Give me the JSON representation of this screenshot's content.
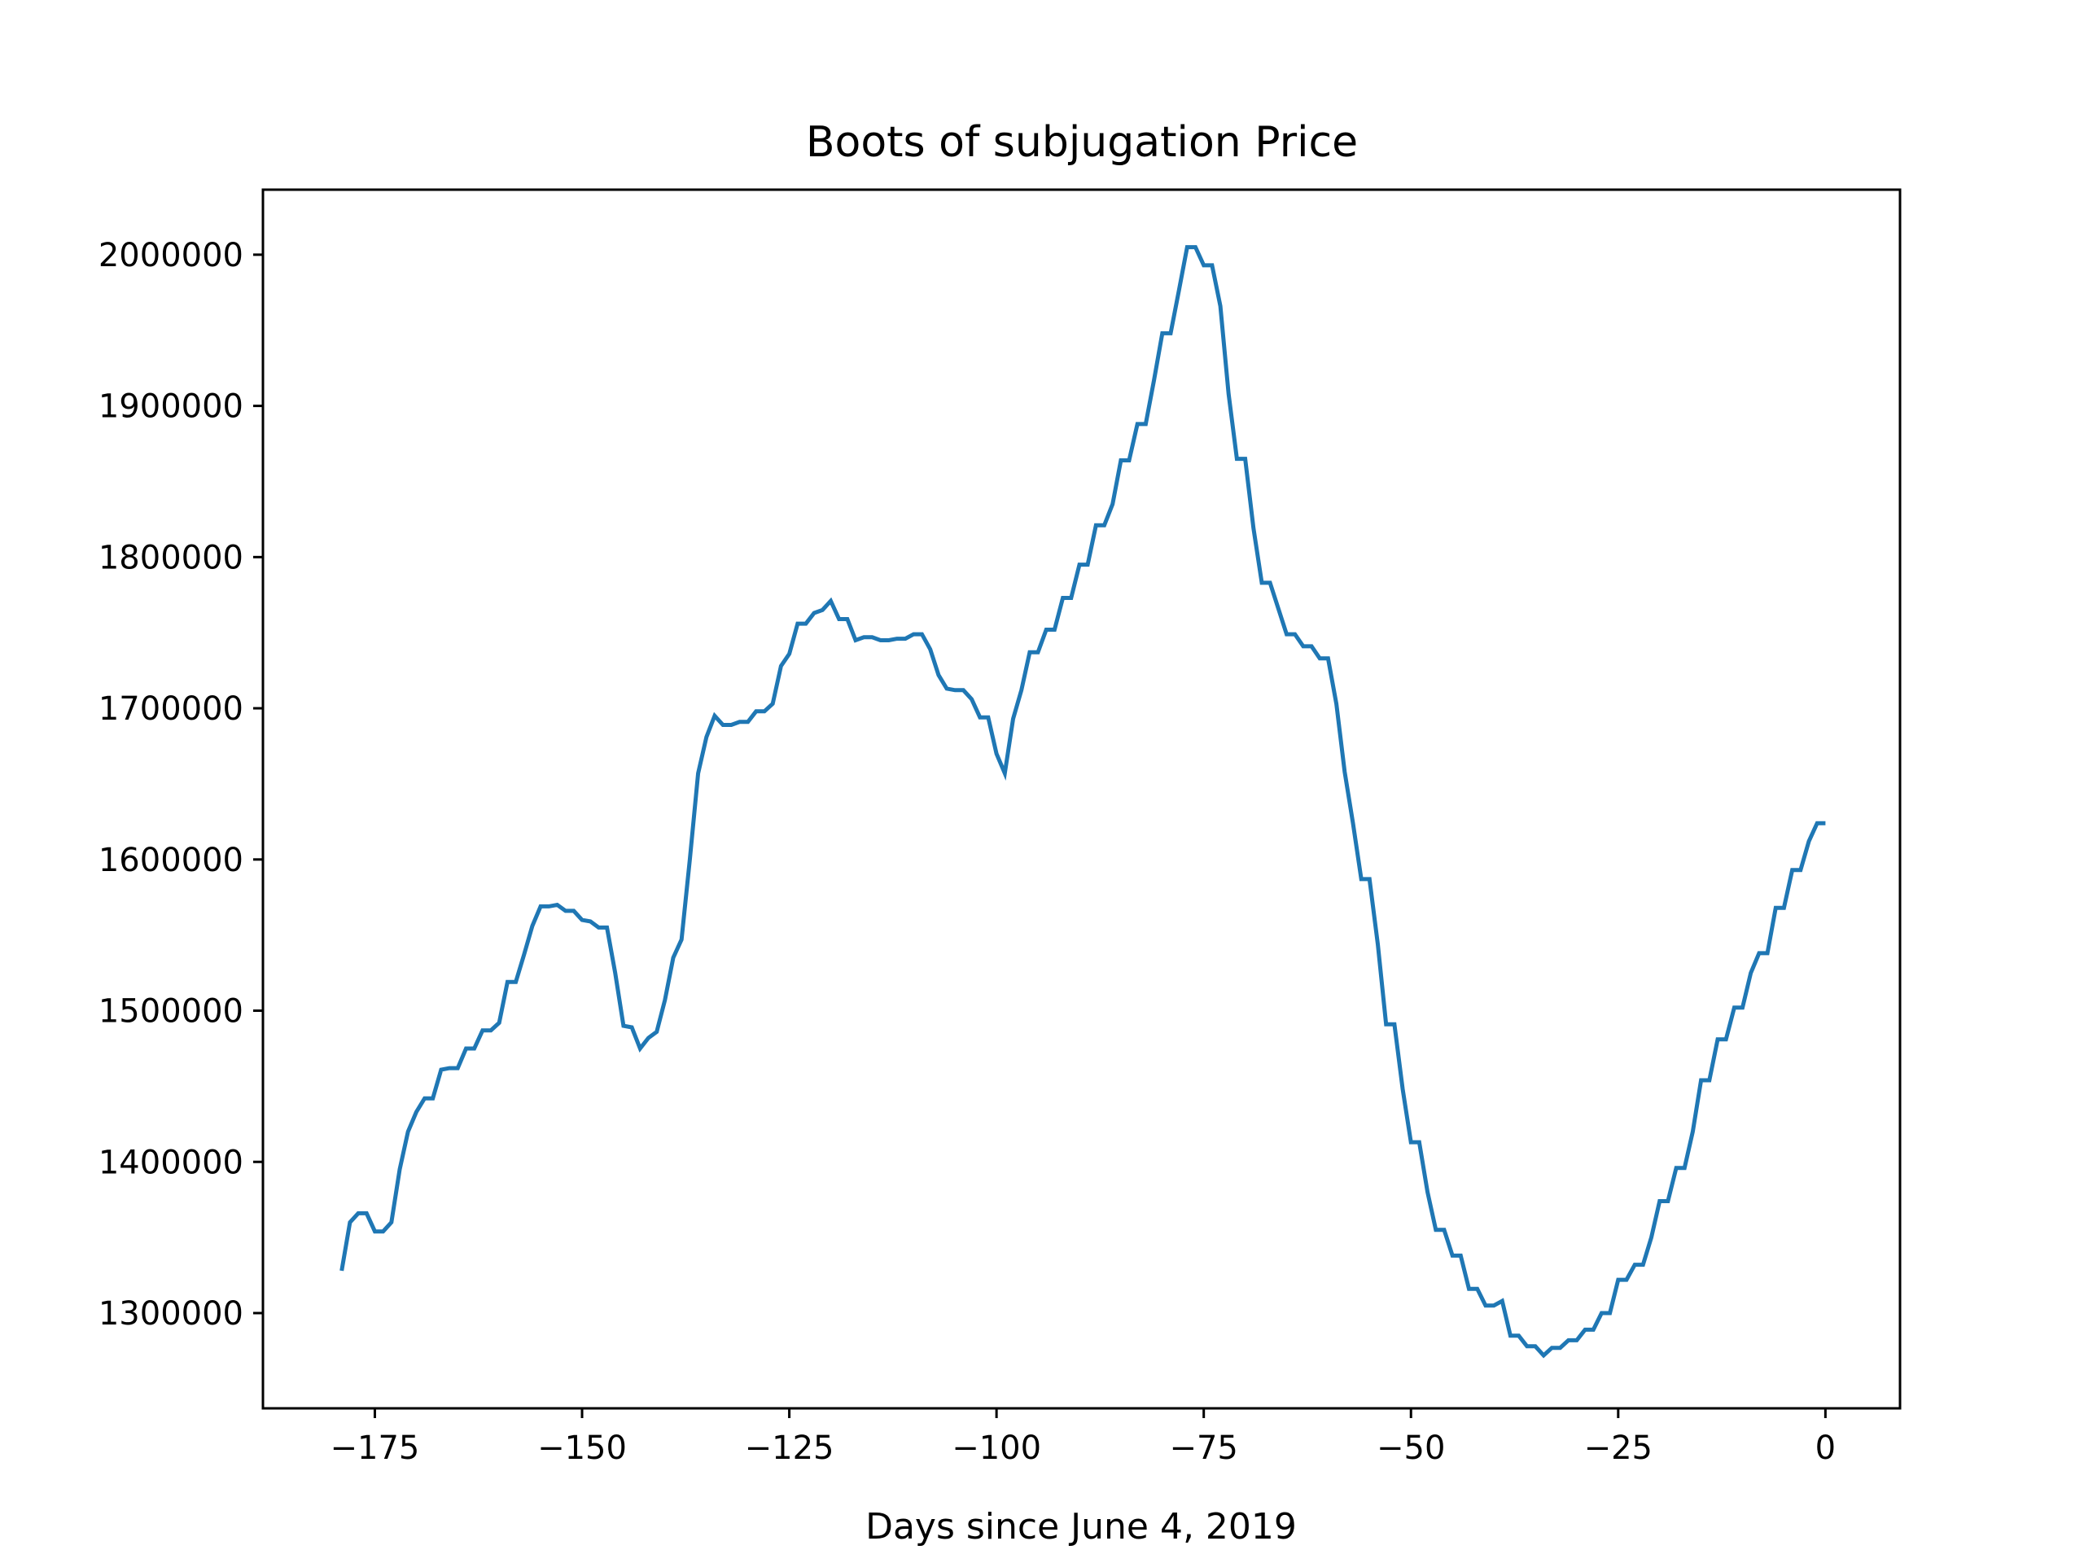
{
  "chart_data": {
    "type": "line",
    "title": "Boots of subjugation Price",
    "xlabel": "Days since June 4, 2019",
    "ylabel": "",
    "xlim": [
      -188.5,
      9
    ],
    "ylim": [
      1237000,
      2043000
    ],
    "x_ticks": [
      -175,
      -150,
      -125,
      -100,
      -75,
      -50,
      -25,
      0
    ],
    "x_tick_labels": [
      "−175",
      "−150",
      "−125",
      "−100",
      "−75",
      "−50",
      "−25",
      "0"
    ],
    "y_ticks": [
      1300000,
      1400000,
      1500000,
      1600000,
      1700000,
      1800000,
      1900000,
      2000000
    ],
    "y_tick_labels": [
      "1300000",
      "1400000",
      "1500000",
      "1600000",
      "1700000",
      "1800000",
      "1900000",
      "2000000"
    ],
    "grid": false,
    "legend": "none",
    "series": [
      {
        "color": "#1f77b4",
        "points": [
          [
            -179,
            1328000
          ],
          [
            -178,
            1360000
          ],
          [
            -177,
            1366000
          ],
          [
            -176,
            1366000
          ],
          [
            -175,
            1354000
          ],
          [
            -174,
            1354000
          ],
          [
            -173,
            1360000
          ],
          [
            -172,
            1395000
          ],
          [
            -171,
            1420000
          ],
          [
            -170,
            1433000
          ],
          [
            -169,
            1442000
          ],
          [
            -168,
            1442000
          ],
          [
            -167,
            1461000
          ],
          [
            -166,
            1462000
          ],
          [
            -165,
            1462000
          ],
          [
            -164,
            1475000
          ],
          [
            -163,
            1475000
          ],
          [
            -162,
            1487000
          ],
          [
            -161,
            1487000
          ],
          [
            -160,
            1492000
          ],
          [
            -159,
            1519000
          ],
          [
            -158,
            1519000
          ],
          [
            -157,
            1537000
          ],
          [
            -156,
            1556000
          ],
          [
            -155,
            1569000
          ],
          [
            -154,
            1569000
          ],
          [
            -153,
            1570000
          ],
          [
            -152,
            1566000
          ],
          [
            -151,
            1566000
          ],
          [
            -150,
            1560000
          ],
          [
            -149,
            1559000
          ],
          [
            -148,
            1555000
          ],
          [
            -147,
            1555000
          ],
          [
            -146,
            1525000
          ],
          [
            -145,
            1490000
          ],
          [
            -144,
            1489000
          ],
          [
            -143,
            1475000
          ],
          [
            -142,
            1482000
          ],
          [
            -141,
            1486000
          ],
          [
            -140,
            1507000
          ],
          [
            -139,
            1535000
          ],
          [
            -138,
            1547000
          ],
          [
            -137,
            1600000
          ],
          [
            -136,
            1657000
          ],
          [
            -135,
            1681000
          ],
          [
            -134,
            1695000
          ],
          [
            -133,
            1689000
          ],
          [
            -132,
            1689000
          ],
          [
            -131,
            1691000
          ],
          [
            -130,
            1691000
          ],
          [
            -129,
            1698000
          ],
          [
            -128,
            1698000
          ],
          [
            -127,
            1703000
          ],
          [
            -126,
            1728000
          ],
          [
            -125,
            1736000
          ],
          [
            -124,
            1756000
          ],
          [
            -123,
            1756000
          ],
          [
            -122,
            1763000
          ],
          [
            -121,
            1765000
          ],
          [
            -120,
            1771000
          ],
          [
            -119,
            1759000
          ],
          [
            -118,
            1759000
          ],
          [
            -117,
            1745000
          ],
          [
            -116,
            1747000
          ],
          [
            -115,
            1747000
          ],
          [
            -114,
            1745000
          ],
          [
            -113,
            1745000
          ],
          [
            -112,
            1746000
          ],
          [
            -111,
            1746000
          ],
          [
            -110,
            1749000
          ],
          [
            -109,
            1749000
          ],
          [
            -108,
            1739000
          ],
          [
            -107,
            1722000
          ],
          [
            -106,
            1713000
          ],
          [
            -105,
            1712000
          ],
          [
            -104,
            1712000
          ],
          [
            -103,
            1706000
          ],
          [
            -102,
            1694000
          ],
          [
            -101,
            1694000
          ],
          [
            -100,
            1670000
          ],
          [
            -99,
            1657000
          ],
          [
            -98,
            1693000
          ],
          [
            -97,
            1712000
          ],
          [
            -96,
            1737000
          ],
          [
            -95,
            1737000
          ],
          [
            -94,
            1752000
          ],
          [
            -93,
            1752000
          ],
          [
            -92,
            1773000
          ],
          [
            -91,
            1773000
          ],
          [
            -90,
            1795000
          ],
          [
            -89,
            1795000
          ],
          [
            -88,
            1821000
          ],
          [
            -87,
            1821000
          ],
          [
            -86,
            1835000
          ],
          [
            -85,
            1864000
          ],
          [
            -84,
            1864000
          ],
          [
            -83,
            1888000
          ],
          [
            -82,
            1888000
          ],
          [
            -81,
            1917000
          ],
          [
            -80,
            1948000
          ],
          [
            -79,
            1948000
          ],
          [
            -78,
            1976000
          ],
          [
            -77,
            2005000
          ],
          [
            -76,
            2005000
          ],
          [
            -75,
            1993000
          ],
          [
            -74,
            1993000
          ],
          [
            -73,
            1966000
          ],
          [
            -72,
            1908000
          ],
          [
            -71,
            1865000
          ],
          [
            -70,
            1865000
          ],
          [
            -69,
            1819000
          ],
          [
            -68,
            1783000
          ],
          [
            -67,
            1783000
          ],
          [
            -66,
            1766000
          ],
          [
            -65,
            1749000
          ],
          [
            -64,
            1749000
          ],
          [
            -63,
            1741000
          ],
          [
            -62,
            1741000
          ],
          [
            -61,
            1733000
          ],
          [
            -60,
            1733000
          ],
          [
            -59,
            1703000
          ],
          [
            -58,
            1658000
          ],
          [
            -57,
            1624000
          ],
          [
            -56,
            1587000
          ],
          [
            -55,
            1587000
          ],
          [
            -54,
            1544000
          ],
          [
            -53,
            1491000
          ],
          [
            -52,
            1491000
          ],
          [
            -51,
            1448000
          ],
          [
            -50,
            1413000
          ],
          [
            -49,
            1413000
          ],
          [
            -48,
            1380000
          ],
          [
            -47,
            1355000
          ],
          [
            -46,
            1355000
          ],
          [
            -45,
            1338000
          ],
          [
            -44,
            1338000
          ],
          [
            -43,
            1316000
          ],
          [
            -42,
            1316000
          ],
          [
            -41,
            1305000
          ],
          [
            -40,
            1305000
          ],
          [
            -39,
            1308000
          ],
          [
            -38,
            1285000
          ],
          [
            -37,
            1285000
          ],
          [
            -36,
            1278000
          ],
          [
            -35,
            1278000
          ],
          [
            -34,
            1272000
          ],
          [
            -33,
            1277000
          ],
          [
            -32,
            1277000
          ],
          [
            -31,
            1282000
          ],
          [
            -30,
            1282000
          ],
          [
            -29,
            1289000
          ],
          [
            -28,
            1289000
          ],
          [
            -27,
            1300000
          ],
          [
            -26,
            1300000
          ],
          [
            -25,
            1322000
          ],
          [
            -24,
            1322000
          ],
          [
            -23,
            1332000
          ],
          [
            -22,
            1332000
          ],
          [
            -21,
            1350000
          ],
          [
            -20,
            1374000
          ],
          [
            -19,
            1374000
          ],
          [
            -18,
            1396000
          ],
          [
            -17,
            1396000
          ],
          [
            -16,
            1420000
          ],
          [
            -15,
            1454000
          ],
          [
            -14,
            1454000
          ],
          [
            -13,
            1481000
          ],
          [
            -12,
            1481000
          ],
          [
            -11,
            1502000
          ],
          [
            -10,
            1502000
          ],
          [
            -9,
            1525000
          ],
          [
            -8,
            1538000
          ],
          [
            -7,
            1538000
          ],
          [
            -6,
            1568000
          ],
          [
            -5,
            1568000
          ],
          [
            -4,
            1593000
          ],
          [
            -3,
            1593000
          ],
          [
            -2,
            1612000
          ],
          [
            -1,
            1624000
          ],
          [
            0,
            1624000
          ]
        ]
      }
    ]
  }
}
